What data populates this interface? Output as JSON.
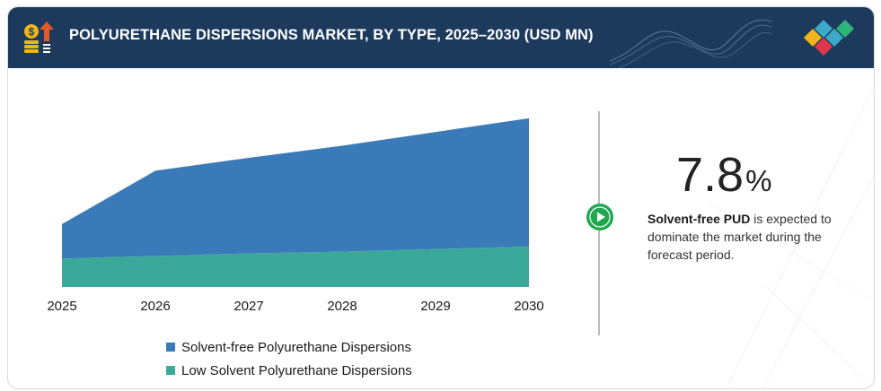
{
  "header": {
    "title": "POLYURETHANE DISPERSIONS MARKET, BY TYPE, 2025–2030 (USD MN)",
    "icon": "money-growth-icon",
    "logo": "diamond-logo-icon"
  },
  "highlight": {
    "value": "7.8",
    "unit": "%",
    "lead": "Solvent-free PUD",
    "text": " is expected to dominate the market during the forecast period."
  },
  "colors": {
    "header_bg": "#1d3a5c",
    "solvent_free": "#3b7ab8",
    "low_solvent": "#3aa99a",
    "play_button": "#1fa84f",
    "logo": [
      "#f2b41b",
      "#3ca9c9",
      "#e0364d",
      "#2fb57a"
    ]
  },
  "chart_data": {
    "type": "area",
    "stacked": true,
    "x": [
      "2025",
      "2026",
      "2027",
      "2028",
      "2029",
      "2030"
    ],
    "series": [
      {
        "name": "Low Solvent Polyurethane Dispersions",
        "color": "#3aa99a",
        "values": [
          33,
          36,
          39,
          41,
          44,
          47
        ]
      },
      {
        "name": "Solvent-free Polyurethane Dispersions",
        "color": "#3b7ab8",
        "values": [
          40,
          99,
          111,
          123,
          136,
          149
        ]
      }
    ],
    "ylim": [
      0,
      200
    ],
    "y_axis_visible": false,
    "grid": false,
    "legend_position": "bottom"
  }
}
